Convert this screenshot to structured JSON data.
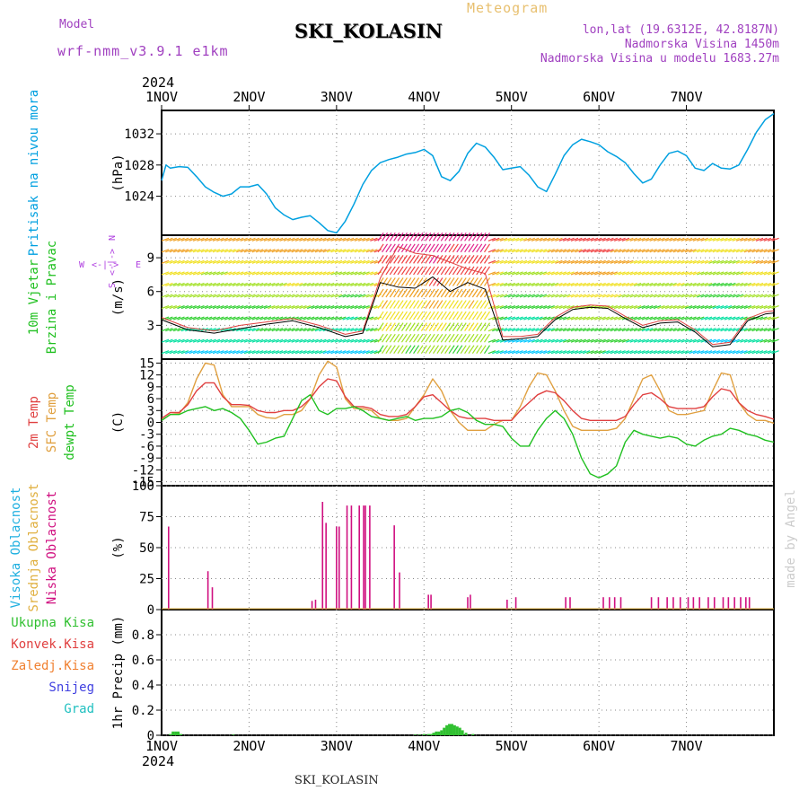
{
  "header": {
    "model_label": "Model",
    "model_name": "wrf-nmm_v3.9.1 e1km",
    "station": "SKI_KOLASIN",
    "meteogram": "Meteogram",
    "lonlat": "lon,lat (19.6312E, 42.8187N)",
    "elevation": "Nadmorska Visina 1450m",
    "model_elevation": "Nadmorska Visina u modelu 1683.27m"
  },
  "footer": {
    "station": "SKI_KOLASIN"
  },
  "watermark": "made by Angel",
  "colors": {
    "pressure": "#00a0e0",
    "temp2m": "#e04040",
    "sfc": "#e0a040",
    "dewpt": "#20c020",
    "cloud_high": "#20b0e0",
    "cloud_mid": "#e0b040",
    "cloud_low": "#d01080",
    "precip": "#30c030",
    "wind_label": "#20c020",
    "compass": "#b040e0"
  },
  "chart_data": [
    {
      "type": "line",
      "panel": "pressure",
      "ylabel": "(hPa)",
      "side_labels": [
        "Pritisak na nivou mora"
      ],
      "ylim": [
        1019,
        1035
      ],
      "yticks": [
        1024,
        1028,
        1032
      ],
      "x_ticks": [
        "1NOV",
        "2NOV",
        "3NOV",
        "4NOV",
        "5NOV",
        "6NOV",
        "7NOV"
      ],
      "x_year": "2024",
      "series": [
        {
          "x": [
            0,
            0.05,
            0.1,
            0.2,
            0.3,
            0.4,
            0.5,
            0.6,
            0.7,
            0.8,
            0.9,
            1.0,
            1.1,
            1.2,
            1.3,
            1.4,
            1.5,
            1.6,
            1.7,
            1.8,
            1.9,
            2.0,
            2.1,
            2.2,
            2.3,
            2.4,
            2.5,
            2.6,
            2.7,
            2.8,
            2.9,
            3.0,
            3.1,
            3.2,
            3.3,
            3.4,
            3.5,
            3.6,
            3.7,
            3.8,
            3.9,
            4.0,
            4.1,
            4.2,
            4.3,
            4.4,
            4.5,
            4.6,
            4.7,
            4.8,
            4.9,
            5.0,
            5.1,
            5.2,
            5.3,
            5.4,
            5.5,
            5.6,
            5.7,
            5.8,
            5.9,
            6.0,
            6.1,
            6.2,
            6.3,
            6.4,
            6.5,
            6.6,
            6.7,
            6.8,
            6.9,
            7.0
          ],
          "values": [
            1026.0,
            1028.0,
            1027.6,
            1027.8,
            1027.7,
            1026.5,
            1025.2,
            1024.5,
            1024.0,
            1024.3,
            1025.2,
            1025.2,
            1025.5,
            1024.3,
            1022.5,
            1021.6,
            1021.0,
            1021.3,
            1021.5,
            1020.6,
            1019.6,
            1019.3,
            1020.8,
            1023.0,
            1025.5,
            1027.3,
            1028.3,
            1028.7,
            1029.0,
            1029.4,
            1029.6,
            1030.0,
            1029.2,
            1026.5,
            1026.0,
            1027.2,
            1029.5,
            1030.8,
            1030.3,
            1029.0,
            1027.4,
            1027.6,
            1027.8,
            1026.7,
            1025.2,
            1024.6,
            1026.8,
            1029.2,
            1030.6,
            1031.3,
            1031.0,
            1030.6,
            1029.7,
            1029.1,
            1028.3,
            1026.9,
            1025.7,
            1026.2,
            1028.0,
            1029.5,
            1029.8,
            1029.2,
            1027.6,
            1027.3,
            1028.2,
            1027.6,
            1027.5,
            1028.0,
            1030.0,
            1032.2,
            1033.8,
            1034.6
          ]
        }
      ]
    },
    {
      "type": "line",
      "panel": "wind",
      "ylabel": "(m/s)",
      "side_labels": [
        "10m Vjetar",
        "Brzina i Pravac"
      ],
      "compass": {
        "n": "N",
        "s": "S",
        "e": "E",
        "w": "W",
        "arrows": "<-|->"
      },
      "ylim": [
        0,
        11
      ],
      "yticks": [
        3,
        6,
        9
      ],
      "series": [
        {
          "name": "mean speed",
          "x": [
            0,
            0.3,
            0.6,
            0.9,
            1.2,
            1.5,
            1.8,
            2.1,
            2.3,
            2.5,
            2.7,
            2.9,
            3.1,
            3.3,
            3.5,
            3.7,
            3.9,
            4.1,
            4.3,
            4.5,
            4.7,
            4.9,
            5.1,
            5.3,
            5.5,
            5.7,
            5.9,
            6.1,
            6.3,
            6.5,
            6.7,
            6.9,
            7.0
          ],
          "values": [
            3.5,
            2.6,
            2.3,
            2.7,
            3.1,
            3.4,
            2.8,
            2.0,
            2.3,
            6.8,
            6.4,
            6.3,
            7.3,
            6.0,
            6.8,
            6.2,
            1.7,
            1.8,
            2.0,
            3.5,
            4.4,
            4.6,
            4.5,
            3.6,
            2.8,
            3.2,
            3.3,
            2.4,
            1.1,
            1.3,
            3.4,
            4.0,
            4.1
          ]
        },
        {
          "name": "gust",
          "x": [
            0,
            0.3,
            0.6,
            0.9,
            1.2,
            1.5,
            1.8,
            2.1,
            2.3,
            2.5,
            2.7,
            2.9,
            3.1,
            3.3,
            3.5,
            3.7,
            3.9,
            4.1,
            4.3,
            4.5,
            4.7,
            4.9,
            5.1,
            5.3,
            5.5,
            5.7,
            5.9,
            6.1,
            6.3,
            6.5,
            6.7,
            6.9,
            7.0
          ],
          "values": [
            3.7,
            2.8,
            2.5,
            3.0,
            3.3,
            3.6,
            3.0,
            2.2,
            2.5,
            7.2,
            10.0,
            9.4,
            9.2,
            8.6,
            8.0,
            7.6,
            2.0,
            2.0,
            2.2,
            3.7,
            4.6,
            4.8,
            4.7,
            3.8,
            3.0,
            3.4,
            3.5,
            2.6,
            1.3,
            1.5,
            3.6,
            4.2,
            4.3
          ]
        }
      ]
    },
    {
      "type": "line",
      "panel": "temperature",
      "ylabel": "(C)",
      "side_labels": [
        "2m Temp",
        "SFC Temp",
        "dewpt Temp"
      ],
      "ylim": [
        -16,
        16
      ],
      "yticks": [
        -15,
        -12,
        -9,
        -6,
        -3,
        0,
        3,
        6,
        9,
        12,
        15
      ],
      "series": [
        {
          "name": "2m Temp",
          "x": [
            0,
            0.1,
            0.2,
            0.3,
            0.4,
            0.5,
            0.6,
            0.7,
            0.8,
            0.9,
            1.0,
            1.1,
            1.2,
            1.3,
            1.4,
            1.5,
            1.6,
            1.7,
            1.8,
            1.9,
            2.0,
            2.1,
            2.2,
            2.3,
            2.4,
            2.5,
            2.6,
            2.7,
            2.8,
            2.9,
            3.0,
            3.1,
            3.2,
            3.3,
            3.4,
            3.5,
            3.6,
            3.7,
            3.8,
            3.9,
            4.0,
            4.1,
            4.2,
            4.3,
            4.4,
            4.5,
            4.6,
            4.7,
            4.8,
            4.9,
            5.0,
            5.1,
            5.2,
            5.3,
            5.4,
            5.5,
            5.6,
            5.7,
            5.8,
            5.9,
            6.0,
            6.1,
            6.2,
            6.3,
            6.4,
            6.5,
            6.6,
            6.7,
            6.8,
            6.9,
            7.0
          ],
          "values": [
            1.0,
            2.5,
            2.5,
            4.5,
            8.0,
            10.0,
            10.0,
            6.5,
            4.5,
            4.5,
            4.3,
            3.0,
            2.5,
            2.5,
            3.0,
            3.0,
            4.0,
            6.0,
            9.0,
            11.0,
            10.5,
            6.5,
            4.0,
            4.0,
            3.5,
            2.0,
            1.5,
            1.5,
            2.0,
            4.0,
            6.5,
            7.0,
            5.0,
            3.0,
            1.5,
            1.0,
            1.0,
            1.0,
            0.5,
            0.5,
            0.5,
            3.0,
            5.0,
            7.0,
            8.0,
            7.5,
            5.5,
            3.0,
            1.0,
            0.5,
            0.5,
            0.5,
            0.5,
            1.5,
            4.5,
            7.0,
            7.5,
            6.0,
            4.0,
            3.5,
            3.5,
            3.5,
            4.0,
            6.5,
            8.5,
            8.0,
            5.0,
            3.0,
            2.0,
            1.5,
            0.8
          ]
        },
        {
          "name": "SFC Temp",
          "x": [
            0,
            0.1,
            0.2,
            0.3,
            0.4,
            0.5,
            0.6,
            0.7,
            0.8,
            0.9,
            1.0,
            1.1,
            1.2,
            1.3,
            1.4,
            1.5,
            1.6,
            1.7,
            1.8,
            1.9,
            2.0,
            2.1,
            2.2,
            2.3,
            2.4,
            2.5,
            2.6,
            2.7,
            2.8,
            2.9,
            3.0,
            3.1,
            3.2,
            3.3,
            3.4,
            3.5,
            3.6,
            3.7,
            3.8,
            3.9,
            4.0,
            4.1,
            4.2,
            4.3,
            4.4,
            4.5,
            4.6,
            4.7,
            4.8,
            4.9,
            5.0,
            5.1,
            5.2,
            5.3,
            5.4,
            5.5,
            5.6,
            5.7,
            5.8,
            5.9,
            6.0,
            6.1,
            6.2,
            6.3,
            6.4,
            6.5,
            6.6,
            6.7,
            6.8,
            6.9,
            7.0
          ],
          "values": [
            0.5,
            2.0,
            2.2,
            5.0,
            11.0,
            15.0,
            14.5,
            7.0,
            4.0,
            4.0,
            4.0,
            2.0,
            1.2,
            1.0,
            2.0,
            2.0,
            3.0,
            6.0,
            12.0,
            15.5,
            14.0,
            6.0,
            3.5,
            3.5,
            3.0,
            1.0,
            0.5,
            0.5,
            1.0,
            4.0,
            7.0,
            11.0,
            8.0,
            3.0,
            0.0,
            -2.0,
            -2.0,
            -2.0,
            -0.5,
            0.5,
            0.5,
            4.0,
            9.0,
            12.5,
            12.0,
            8.0,
            3.0,
            -1.0,
            -2.0,
            -2.0,
            -2.0,
            -2.0,
            -1.5,
            1.0,
            6.0,
            11.0,
            12.0,
            8.0,
            3.0,
            2.0,
            2.0,
            2.5,
            3.0,
            8.0,
            12.5,
            12.0,
            5.0,
            2.0,
            0.5,
            0.5,
            -0.2
          ]
        },
        {
          "name": "dewpt Temp",
          "x": [
            0,
            0.1,
            0.2,
            0.3,
            0.4,
            0.5,
            0.6,
            0.7,
            0.8,
            0.9,
            1.0,
            1.1,
            1.2,
            1.3,
            1.4,
            1.5,
            1.6,
            1.7,
            1.8,
            1.9,
            2.0,
            2.1,
            2.2,
            2.3,
            2.4,
            2.5,
            2.6,
            2.7,
            2.8,
            2.9,
            3.0,
            3.1,
            3.2,
            3.3,
            3.4,
            3.5,
            3.6,
            3.7,
            3.8,
            3.9,
            4.0,
            4.1,
            4.2,
            4.3,
            4.4,
            4.5,
            4.6,
            4.7,
            4.8,
            4.9,
            5.0,
            5.1,
            5.2,
            5.3,
            5.4,
            5.5,
            5.6,
            5.7,
            5.8,
            5.9,
            6.0,
            6.1,
            6.2,
            6.3,
            6.4,
            6.5,
            6.6,
            6.7,
            6.8,
            6.9,
            7.0
          ],
          "values": [
            0.5,
            2.0,
            2.0,
            3.0,
            3.5,
            4.0,
            3.0,
            3.5,
            2.5,
            1.0,
            -2.0,
            -5.5,
            -5.0,
            -4.0,
            -3.5,
            1.0,
            5.5,
            7.0,
            3.0,
            2.0,
            3.5,
            3.5,
            4.0,
            3.0,
            1.5,
            1.0,
            0.5,
            1.0,
            1.5,
            0.5,
            1.0,
            1.0,
            1.5,
            3.0,
            3.5,
            2.5,
            0.5,
            -0.5,
            -0.5,
            -1.0,
            -4.0,
            -6.0,
            -6.0,
            -2.0,
            1.0,
            3.0,
            1.0,
            -3.0,
            -9.0,
            -13.0,
            -14.0,
            -13.0,
            -11.0,
            -5.0,
            -2.0,
            -3.0,
            -3.5,
            -4.0,
            -3.5,
            -4.0,
            -5.5,
            -6.0,
            -4.5,
            -3.5,
            -3.0,
            -1.5,
            -2.0,
            -3.0,
            -3.5,
            -4.5,
            -5.0
          ]
        }
      ]
    },
    {
      "type": "bar",
      "panel": "clouds",
      "ylabel": "(%)",
      "side_labels": [
        "Visoka Oblacnost",
        "Srednja Oblacnost",
        "Niska Oblacnost"
      ],
      "ylim": [
        0,
        100
      ],
      "yticks": [
        0,
        25,
        50,
        75,
        100
      ],
      "series": [
        {
          "name": "Niska Oblacnost",
          "x": [
            0.08,
            0.53,
            0.58,
            1.72,
            1.76,
            1.84,
            1.88,
            2.0,
            2.03,
            2.12,
            2.17,
            2.26,
            2.31,
            2.33,
            2.38,
            2.66,
            2.72,
            3.05,
            3.08,
            3.5,
            3.53,
            3.95,
            4.05,
            4.62,
            4.67,
            5.05,
            5.12,
            5.18,
            5.25,
            5.6,
            5.68,
            5.78,
            5.85,
            5.93,
            6.02,
            6.08,
            6.15,
            6.25,
            6.32,
            6.42,
            6.48,
            6.55,
            6.62,
            6.68,
            6.72
          ],
          "values": [
            67,
            31,
            18,
            7,
            8,
            87,
            70,
            67,
            67,
            84,
            84,
            84,
            84,
            84,
            84,
            68,
            30,
            12,
            12,
            10,
            12,
            8,
            10,
            10,
            10,
            10,
            10,
            10,
            10,
            10,
            10,
            10,
            10,
            10,
            10,
            10,
            10,
            10,
            10,
            10,
            10,
            10,
            10,
            10,
            10
          ]
        }
      ]
    },
    {
      "type": "bar",
      "panel": "precip",
      "ylabel": "1hr Precip (mm)",
      "side_labels": [
        "Ukupna Kisa",
        "Konvek.Kisa",
        "Zaledj.Kisa",
        "Snijeg",
        "Grad"
      ],
      "ylim": [
        0,
        1.0
      ],
      "yticks": [
        "0",
        "0.2",
        "0.4",
        "0.6",
        "0.8"
      ],
      "series": [
        {
          "name": "Ukupna Kisa",
          "x": [
            0.1,
            0.13,
            0.16,
            0.19,
            0.22,
            0.82,
            2.9,
            2.95,
            3.0,
            3.05,
            3.08,
            3.11,
            3.14,
            3.17,
            3.2,
            3.23,
            3.26,
            3.29,
            3.32,
            3.35,
            3.38,
            3.41,
            3.44,
            3.48,
            3.56
          ],
          "values": [
            0.01,
            0.03,
            0.03,
            0.03,
            0.01,
            0.005,
            0.005,
            0.005,
            0.01,
            0.01,
            0.01,
            0.02,
            0.03,
            0.03,
            0.04,
            0.06,
            0.08,
            0.09,
            0.09,
            0.08,
            0.07,
            0.06,
            0.04,
            0.02,
            0.01
          ]
        }
      ]
    }
  ]
}
